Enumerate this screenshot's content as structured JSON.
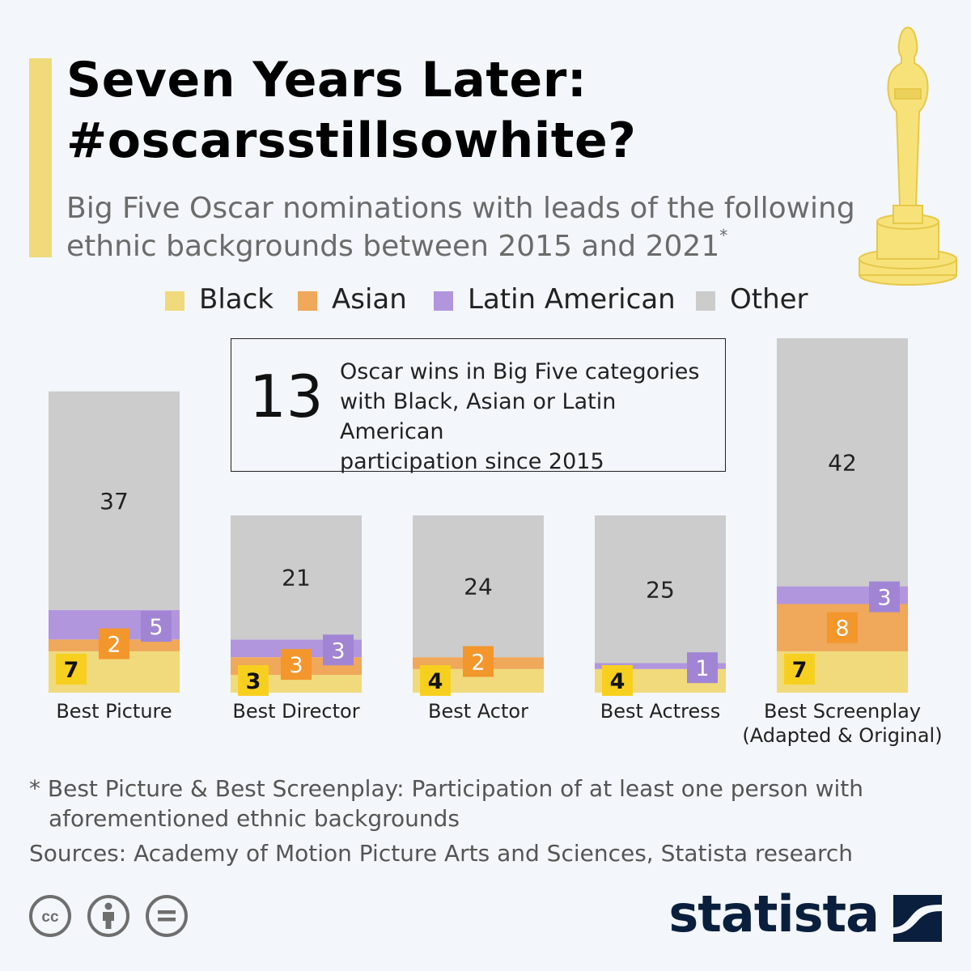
{
  "header": {
    "title_line1": "Seven Years Later:",
    "title_line2": "#oscarsstillsowhite?",
    "subtitle_line1": "Big Five Oscar nominations with leads of the following",
    "subtitle_line2": "ethnic backgrounds between 2015 and 2021",
    "subtitle_marker": "*"
  },
  "legend": [
    {
      "label": "Black",
      "color": "#f0da7c"
    },
    {
      "label": "Asian",
      "color": "#f0a85a"
    },
    {
      "label": "Latin American",
      "color": "#b196de"
    },
    {
      "label": "Other",
      "color": "#cccccc"
    }
  ],
  "callout": {
    "number": "13",
    "line1": "Oscar wins in Big Five categories",
    "line2": "with Black, Asian or Latin American",
    "line3": "participation since 2015"
  },
  "chart_data": {
    "type": "bar",
    "stacked": true,
    "categories": [
      "Best Picture",
      "Best Director",
      "Best Actor",
      "Best Actress",
      "Best Screenplay (Adapted & Original)"
    ],
    "category_lines": [
      [
        "Best Picture"
      ],
      [
        "Best Director"
      ],
      [
        "Best Actor"
      ],
      [
        "Best Actress"
      ],
      [
        "Best Screenplay",
        "(Adapted & Original)"
      ]
    ],
    "series": [
      {
        "name": "Black",
        "values": [
          7,
          3,
          4,
          4,
          7
        ],
        "color": "#f0da7c",
        "label_color": "#f7d01f"
      },
      {
        "name": "Asian",
        "values": [
          2,
          3,
          2,
          0,
          8
        ],
        "color": "#f0a85a",
        "label_color": "#f3962c"
      },
      {
        "name": "Latin American",
        "values": [
          5,
          3,
          0,
          1,
          3
        ],
        "color": "#b196de",
        "label_color": "#a185d4"
      },
      {
        "name": "Other",
        "values": [
          37,
          21,
          24,
          25,
          42
        ],
        "color": "#cccccc",
        "label_color": "#cccccc"
      }
    ],
    "legend_position": "top",
    "grid": false
  },
  "footer": {
    "footnote_line1": "* Best Picture & Best Screenplay: Participation of at least one person with",
    "footnote_line2": "aforementioned ethnic backgrounds",
    "sources": "Sources: Academy of Motion Picture Arts and Sciences, Statista research",
    "brand": "statista",
    "icons": [
      "creative-commons-icon",
      "attribution-icon",
      "no-derivatives-icon"
    ]
  }
}
